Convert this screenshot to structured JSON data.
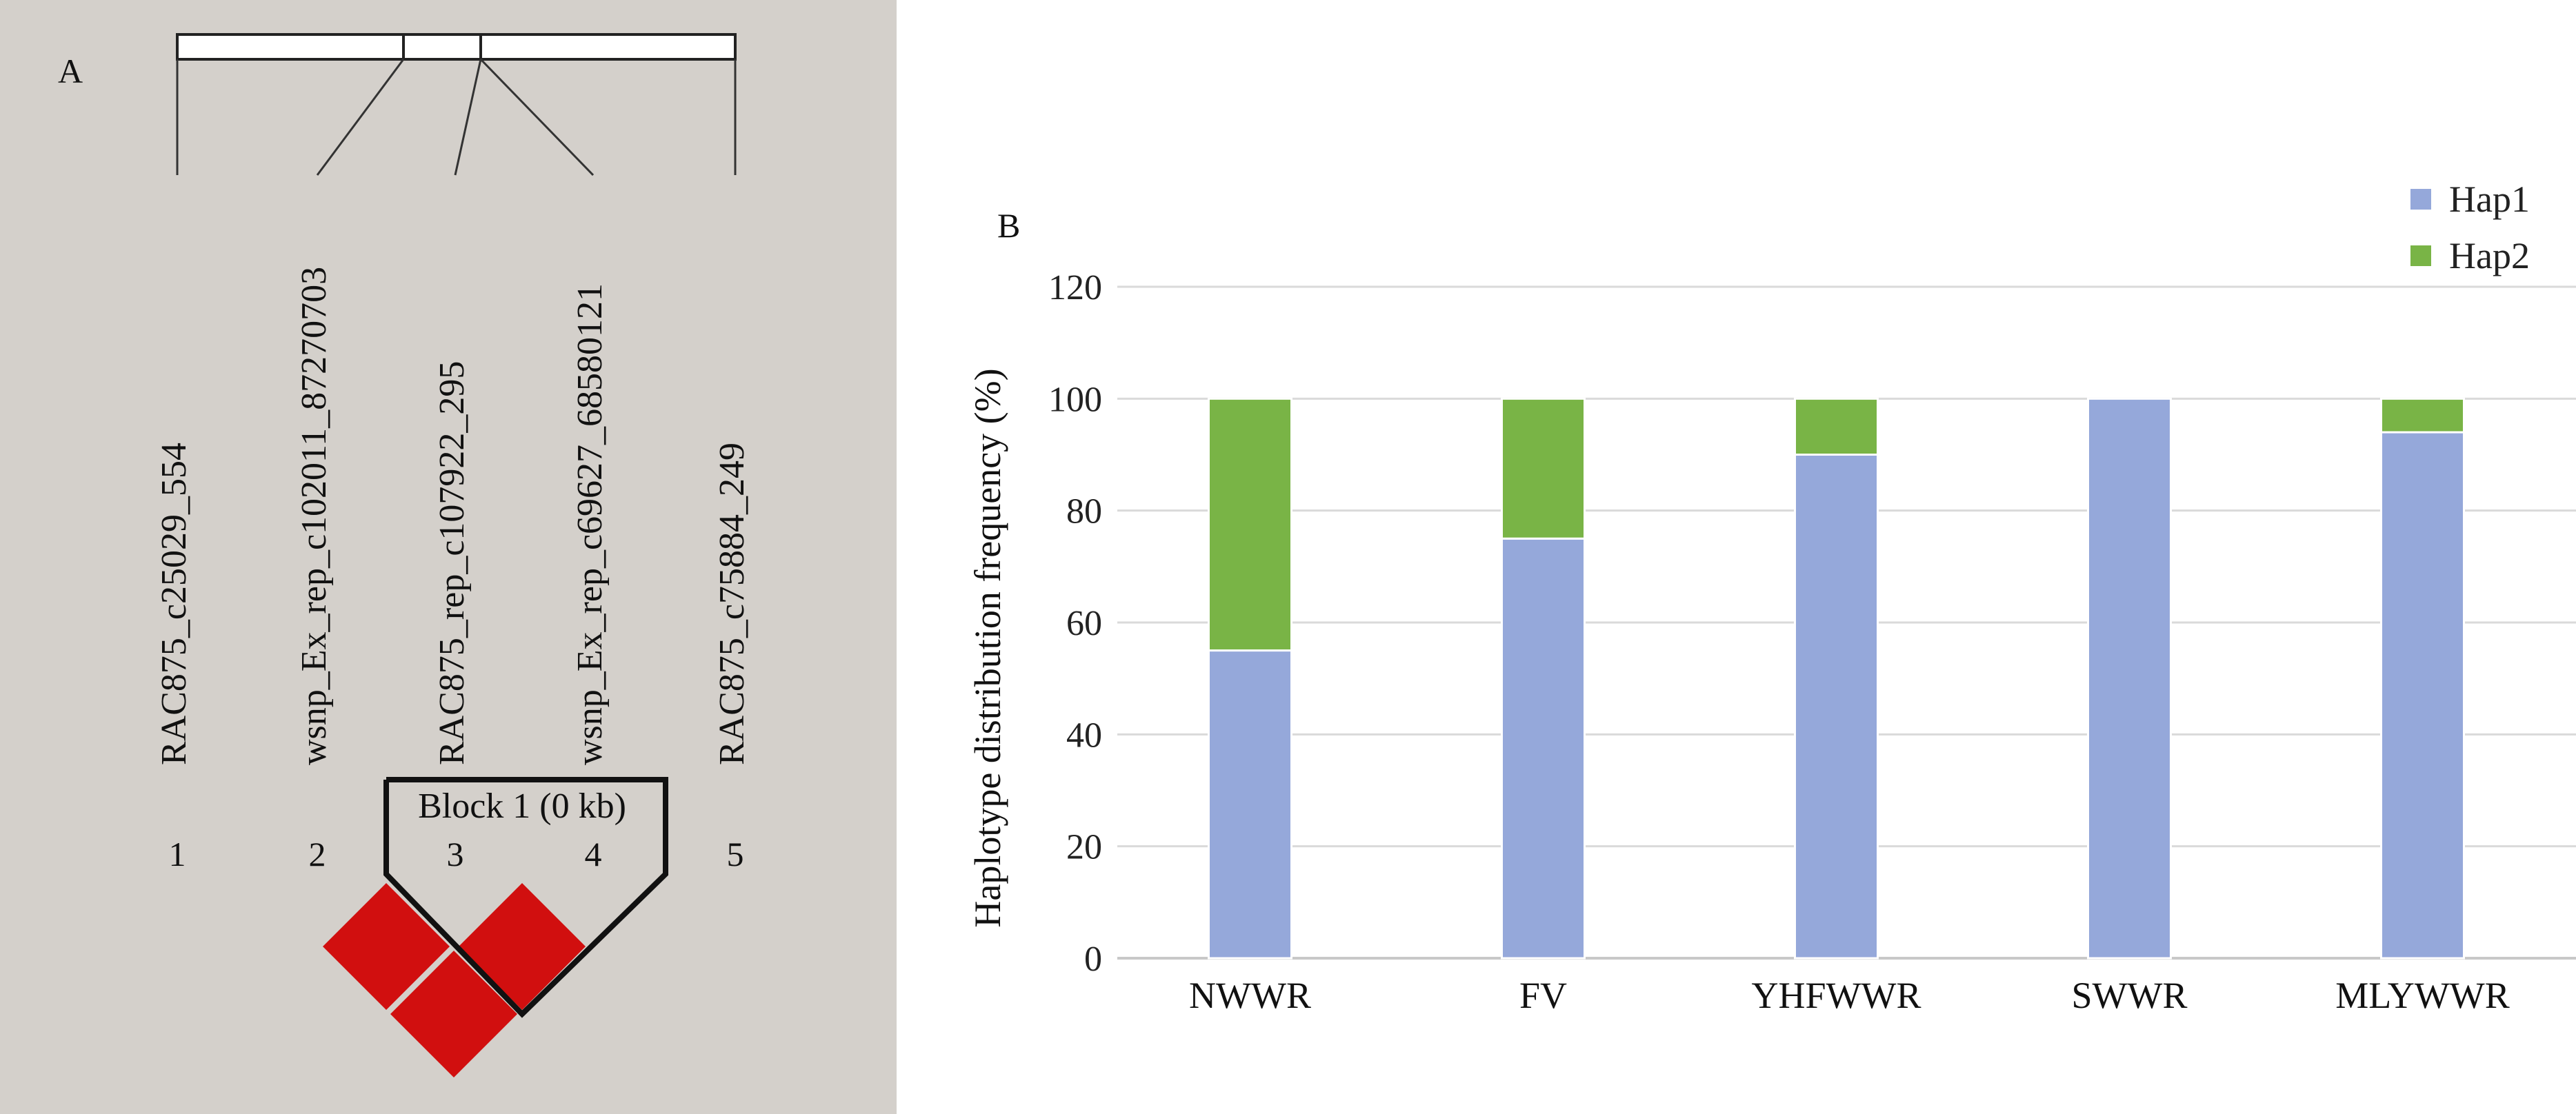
{
  "panel_a": {
    "label": "A",
    "markers": [
      {
        "index": "1",
        "name": "RAC875_c25029_554"
      },
      {
        "index": "2",
        "name": "wsnp_Ex_rep_c102011_87270703"
      },
      {
        "index": "3",
        "name": "RAC875_rep_c107922_295"
      },
      {
        "index": "4",
        "name": "wsnp_Ex_rep_c69627_68580121"
      },
      {
        "index": "5",
        "name": "RAC875_c75884_249"
      }
    ],
    "block_label": "Block 1 (0 kb)",
    "ld_cell_color": "#d10f0f"
  },
  "panel_b": {
    "label": "B",
    "chart_data": {
      "type": "bar",
      "stacked": true,
      "categories": [
        "NWWR",
        "FV",
        "YHFWWR",
        "SWWR",
        "MLYWWR"
      ],
      "series": [
        {
          "name": "Hap1",
          "color": "#95a8da",
          "values": [
            55,
            75,
            90,
            100,
            94
          ]
        },
        {
          "name": "Hap2",
          "color": "#79b446",
          "values": [
            45,
            25,
            10,
            0,
            6
          ]
        }
      ],
      "ylabel": "Haplotype distribution frequency (%)",
      "ylim": [
        0,
        120
      ],
      "yticks": [
        0,
        20,
        40,
        60,
        80,
        100,
        120
      ],
      "grid": true,
      "legend_position": "top-right"
    }
  }
}
